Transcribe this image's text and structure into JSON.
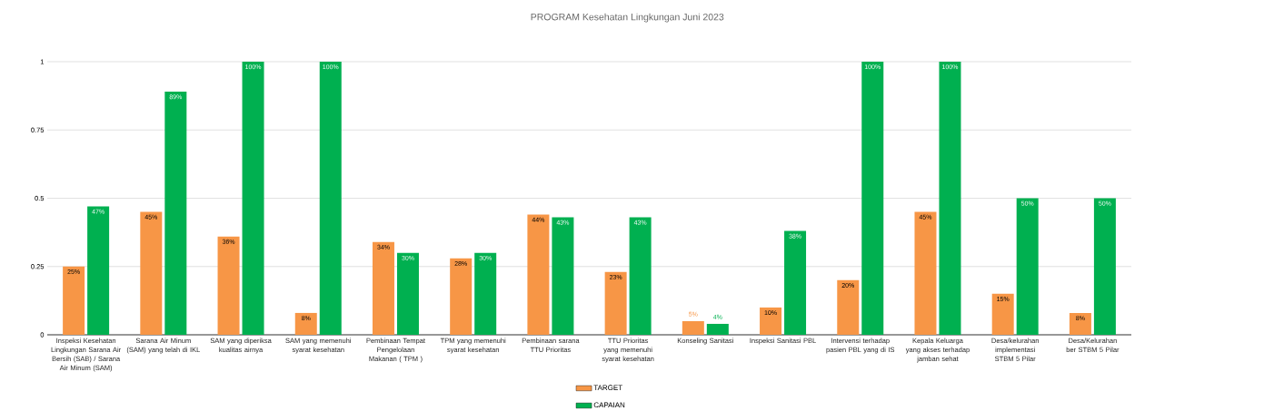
{
  "chart_data": {
    "type": "bar",
    "title": "PROGRAM Kesehatan Lingkungan Juni 2023",
    "categories": [
      "Inspeksi Kesehatan Lingkungan Sarana Air Bersih (SAB) / Sarana Air Minum (SAM)",
      "Sarana Air Minum (SAM) yang telah di IKL",
      "SAM yang diperiksa kualitas airnya",
      "SAM yang memenuhi syarat kesehatan",
      "Pembinaan Tempat Pengelolaan Makanan ( TPM )",
      "TPM yang memenuhi syarat kesehatan",
      "Pembinaan sarana TTU Prioritas",
      "TTU Prioritas yang memenuhi syarat kesehatan",
      "Konseling Sanitasi",
      "Inspeksi Sanitasi PBL",
      "Intervensi terhadap pasien PBL yang di IS",
      "Kepala Keluarga yang akses terhadap jamban sehat",
      "Desa/kelurahan implementasi STBM 5 Pilar",
      "Desa/Kelurahan ber STBM 5 Pilar"
    ],
    "series": [
      {
        "name": "TARGET",
        "color": "#f79646",
        "values": [
          0.25,
          0.45,
          0.36,
          0.08,
          0.34,
          0.28,
          0.44,
          0.23,
          0.05,
          0.1,
          0.2,
          0.45,
          0.15,
          0.08
        ],
        "value_labels": [
          "25%",
          "45%",
          "36%",
          "8%",
          "34%",
          "28%",
          "44%",
          "23%",
          "5%",
          "10%",
          "20%",
          "45%",
          "15%",
          "8%"
        ]
      },
      {
        "name": "CAPAIAN",
        "color": "#00b050",
        "values": [
          0.47,
          0.89,
          1.0,
          1.0,
          0.3,
          0.3,
          0.43,
          0.43,
          0.04,
          0.38,
          1.0,
          1.0,
          0.5,
          0.5
        ],
        "value_labels": [
          "47%",
          "89%",
          "100%",
          "100%",
          "30%",
          "30%",
          "43%",
          "43%",
          "4%",
          "38%",
          "100%",
          "100%",
          "50%",
          "50%"
        ]
      }
    ],
    "ylim": [
      0,
      1
    ],
    "yticks": [
      0,
      0.25,
      0.5,
      0.75,
      1
    ],
    "grid": "y",
    "legend": "bottom"
  }
}
